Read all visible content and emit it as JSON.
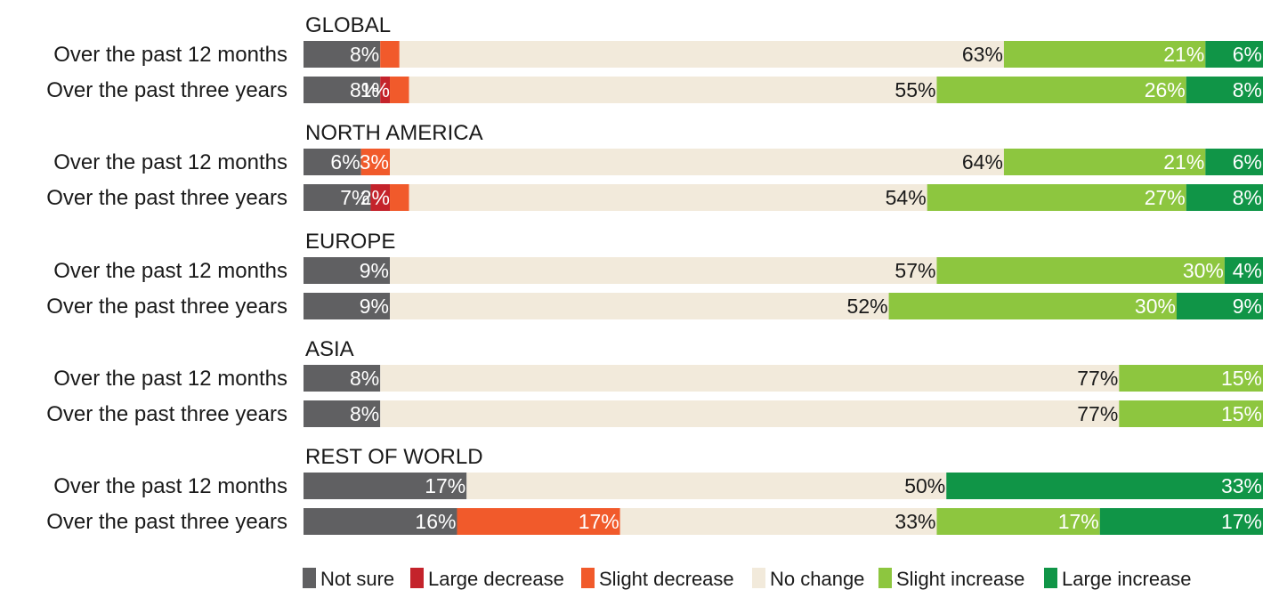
{
  "chart_data": {
    "type": "bar",
    "orientation": "horizontal",
    "stacked": true,
    "percent": true,
    "categories": [
      "Not sure",
      "Large decrease",
      "Slight decrease",
      "No change",
      "Slight increase",
      "Large increase"
    ],
    "colors": {
      "Not sure": "#606062",
      "Large decrease": "#c4232b",
      "Slight decrease": "#f15a2b",
      "No change": "#f2eadb",
      "Slight increase": "#8dc63f",
      "Large increase": "#109547"
    },
    "legend_position": "bottom",
    "groups": [
      {
        "title": "GLOBAL",
        "rows": [
          {
            "label": "Over the past 12 months",
            "values": [
              8,
              0,
              2,
              63,
              21,
              6
            ]
          },
          {
            "label": "Over the past three years",
            "values": [
              8,
              1,
              2,
              55,
              26,
              8
            ]
          }
        ]
      },
      {
        "title": "NORTH AMERICA",
        "rows": [
          {
            "label": "Over the past 12 months",
            "values": [
              6,
              0,
              3,
              64,
              21,
              6
            ]
          },
          {
            "label": "Over the past three years",
            "values": [
              7,
              2,
              2,
              54,
              27,
              8
            ]
          }
        ]
      },
      {
        "title": "EUROPE",
        "rows": [
          {
            "label": "Over the past 12 months",
            "values": [
              9,
              0,
              0,
              57,
              30,
              4
            ]
          },
          {
            "label": "Over the past three years",
            "values": [
              9,
              0,
              0,
              52,
              30,
              9
            ]
          }
        ]
      },
      {
        "title": "ASIA",
        "rows": [
          {
            "label": "Over the past 12 months",
            "values": [
              8,
              0,
              0,
              77,
              15,
              0
            ]
          },
          {
            "label": "Over the past three years",
            "values": [
              8,
              0,
              0,
              77,
              15,
              0
            ]
          }
        ]
      },
      {
        "title": "REST OF WORLD",
        "rows": [
          {
            "label": "Over the past 12 months",
            "values": [
              17,
              0,
              0,
              50,
              0,
              33
            ]
          },
          {
            "label": "Over the past three years",
            "values": [
              16,
              0,
              17,
              33,
              17,
              17
            ]
          }
        ]
      }
    ]
  }
}
